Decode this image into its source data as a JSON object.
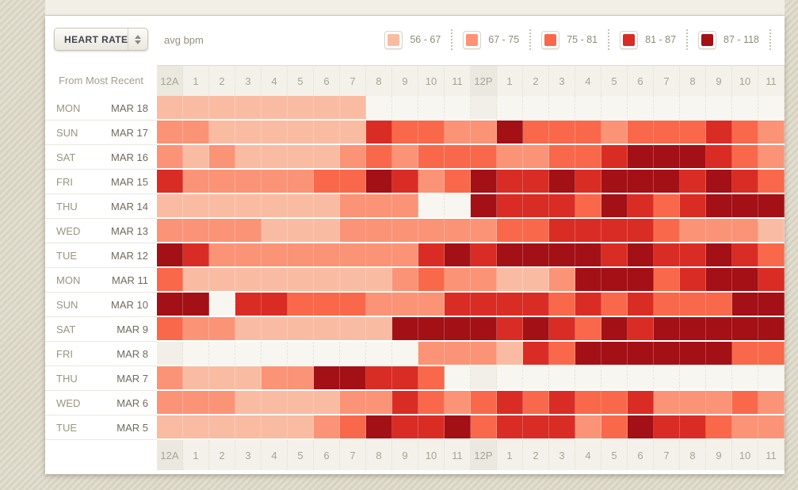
{
  "header": {
    "metric_select": {
      "value": "HEART RATE"
    },
    "unit_label": "avg bpm"
  },
  "legend": {
    "items": [
      {
        "range": "56 - 67",
        "color": "#F9BCA3"
      },
      {
        "range": "67 - 75",
        "color": "#FB9377"
      },
      {
        "range": "75 - 81",
        "color": "#F9684A"
      },
      {
        "range": "81 - 87",
        "color": "#D92C25"
      },
      {
        "range": "87 - 118",
        "color": "#A31016"
      }
    ]
  },
  "table": {
    "corner_label": "From Most Recent",
    "days": [
      {
        "day": "MON",
        "date": "MAR 18"
      },
      {
        "day": "SUN",
        "date": "MAR 17"
      },
      {
        "day": "SAT",
        "date": "MAR 16"
      },
      {
        "day": "FRI",
        "date": "MAR 15"
      },
      {
        "day": "THU",
        "date": "MAR 14"
      },
      {
        "day": "WED",
        "date": "MAR 13"
      },
      {
        "day": "TUE",
        "date": "MAR 12"
      },
      {
        "day": "MON",
        "date": "MAR 11"
      },
      {
        "day": "SUN",
        "date": "MAR 10"
      },
      {
        "day": "SAT",
        "date": "MAR 9"
      },
      {
        "day": "FRI",
        "date": "MAR 8"
      },
      {
        "day": "THU",
        "date": "MAR 7"
      },
      {
        "day": "WED",
        "date": "MAR 6"
      },
      {
        "day": "TUE",
        "date": "MAR 5"
      }
    ]
  },
  "colors": {
    "empty_cell": "#F8F6F1",
    "empty_cell_shaded": "#F1EFE8",
    "header_band": "#F3F1EA",
    "header_band_shaded": "#EAE8DF"
  },
  "chart_data": {
    "type": "heatmap",
    "title": "HEART RATE avg bpm",
    "x_labels": [
      "12A",
      "1",
      "2",
      "3",
      "4",
      "5",
      "6",
      "7",
      "8",
      "9",
      "10",
      "11",
      "12P",
      "1",
      "2",
      "3",
      "4",
      "5",
      "6",
      "7",
      "8",
      "9",
      "10",
      "11"
    ],
    "y_labels": [
      "MON MAR 18",
      "SUN MAR 17",
      "SAT MAR 16",
      "FRI MAR 15",
      "THU MAR 14",
      "WED MAR 13",
      "TUE MAR 12",
      "MON MAR 11",
      "SUN MAR 10",
      "SAT MAR 9",
      "FRI MAR 8",
      "THU MAR 7",
      "WED MAR 6",
      "TUE MAR 5"
    ],
    "legend_buckets": [
      {
        "index": 1,
        "range_bpm": "56 - 67",
        "color": "#F9BCA3"
      },
      {
        "index": 2,
        "range_bpm": "67 - 75",
        "color": "#FB9377"
      },
      {
        "index": 3,
        "range_bpm": "75 - 81",
        "color": "#F9684A"
      },
      {
        "index": 4,
        "range_bpm": "81 - 87",
        "color": "#D92C25"
      },
      {
        "index": 5,
        "range_bpm": "87 - 118",
        "color": "#A31016"
      }
    ],
    "value_encoding": "0 = no data; 1-5 = avg bpm bucket index into legend_buckets",
    "values": [
      [
        1,
        1,
        1,
        1,
        1,
        1,
        1,
        1,
        0,
        0,
        0,
        0,
        0,
        0,
        0,
        0,
        0,
        0,
        0,
        0,
        0,
        0,
        0,
        0
      ],
      [
        2,
        2,
        1,
        1,
        1,
        1,
        1,
        1,
        4,
        3,
        3,
        2,
        2,
        5,
        3,
        3,
        3,
        2,
        3,
        3,
        3,
        4,
        3,
        2
      ],
      [
        2,
        1,
        2,
        1,
        1,
        1,
        1,
        2,
        3,
        2,
        3,
        3,
        3,
        2,
        2,
        3,
        3,
        4,
        5,
        5,
        5,
        4,
        3,
        2
      ],
      [
        4,
        2,
        2,
        2,
        2,
        2,
        3,
        3,
        5,
        4,
        2,
        3,
        5,
        4,
        4,
        5,
        4,
        5,
        5,
        5,
        4,
        5,
        4,
        3
      ],
      [
        1,
        1,
        1,
        1,
        1,
        1,
        1,
        2,
        2,
        2,
        0,
        0,
        5,
        4,
        4,
        4,
        3,
        5,
        4,
        3,
        4,
        5,
        5,
        5
      ],
      [
        2,
        2,
        2,
        2,
        1,
        1,
        1,
        2,
        2,
        2,
        2,
        2,
        2,
        3,
        3,
        4,
        4,
        4,
        4,
        3,
        2,
        2,
        2,
        1
      ],
      [
        5,
        4,
        2,
        2,
        2,
        2,
        2,
        2,
        2,
        2,
        4,
        5,
        4,
        5,
        5,
        5,
        5,
        4,
        5,
        4,
        4,
        5,
        4,
        3
      ],
      [
        3,
        1,
        1,
        1,
        1,
        1,
        1,
        1,
        1,
        2,
        3,
        2,
        2,
        1,
        1,
        2,
        5,
        5,
        5,
        3,
        4,
        5,
        5,
        4
      ],
      [
        5,
        5,
        0,
        4,
        4,
        3,
        3,
        3,
        2,
        2,
        2,
        4,
        4,
        4,
        4,
        3,
        4,
        3,
        4,
        3,
        3,
        3,
        5,
        5
      ],
      [
        3,
        2,
        2,
        1,
        1,
        1,
        1,
        1,
        1,
        5,
        5,
        5,
        5,
        4,
        5,
        4,
        3,
        5,
        4,
        5,
        5,
        5,
        5,
        5
      ],
      [
        0,
        0,
        0,
        0,
        0,
        0,
        0,
        0,
        0,
        0,
        2,
        2,
        2,
        1,
        4,
        3,
        5,
        5,
        5,
        5,
        5,
        5,
        3,
        3
      ],
      [
        2,
        1,
        1,
        1,
        2,
        2,
        5,
        5,
        4,
        4,
        3,
        0,
        0,
        0,
        0,
        0,
        0,
        0,
        0,
        0,
        0,
        0,
        0,
        0
      ],
      [
        2,
        2,
        2,
        1,
        1,
        1,
        1,
        2,
        2,
        4,
        3,
        2,
        3,
        4,
        3,
        4,
        3,
        3,
        4,
        2,
        2,
        2,
        3,
        2
      ],
      [
        1,
        1,
        1,
        1,
        1,
        1,
        2,
        3,
        5,
        4,
        4,
        5,
        3,
        4,
        4,
        4,
        2,
        3,
        5,
        4,
        4,
        3,
        2,
        2
      ]
    ]
  }
}
